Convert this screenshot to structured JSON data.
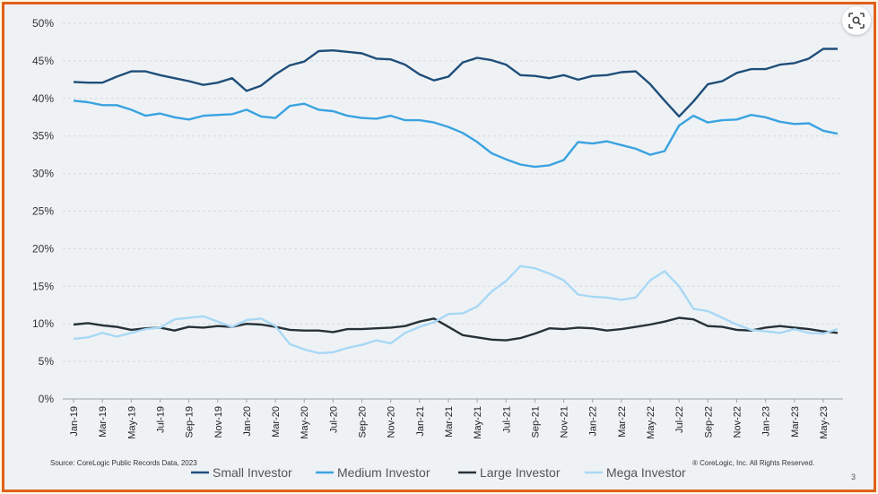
{
  "chart_data": {
    "type": "line",
    "categories": [
      "Jan-19",
      "Feb-19",
      "Mar-19",
      "Apr-19",
      "May-19",
      "Jun-19",
      "Jul-19",
      "Aug-19",
      "Sep-19",
      "Oct-19",
      "Nov-19",
      "Dec-19",
      "Jan-20",
      "Feb-20",
      "Mar-20",
      "Apr-20",
      "May-20",
      "Jun-20",
      "Jul-20",
      "Aug-20",
      "Sep-20",
      "Oct-20",
      "Nov-20",
      "Dec-20",
      "Jan-21",
      "Feb-21",
      "Mar-21",
      "Apr-21",
      "May-21",
      "Jun-21",
      "Jul-21",
      "Aug-21",
      "Sep-21",
      "Oct-21",
      "Nov-21",
      "Dec-21",
      "Jan-22",
      "Feb-22",
      "Mar-22",
      "Apr-22",
      "May-22",
      "Jun-22",
      "Jul-22",
      "Aug-22",
      "Sep-22",
      "Oct-22",
      "Nov-22",
      "Dec-22",
      "Jan-23",
      "Feb-23",
      "Mar-23",
      "Apr-23",
      "May-23",
      "Jun-23"
    ],
    "x_tick_labels": [
      "Jan-19",
      "Mar-19",
      "May-19",
      "Jul-19",
      "Sep-19",
      "Nov-19",
      "Jan-20",
      "Mar-20",
      "May-20",
      "Jul-20",
      "Sep-20",
      "Nov-20",
      "Jan-21",
      "Mar-21",
      "May-21",
      "Jul-21",
      "Sep-21",
      "Nov-21",
      "Jan-22",
      "Mar-22",
      "May-22",
      "Jul-22",
      "Sep-22",
      "Nov-22",
      "Jan-23",
      "Mar-23",
      "May-23"
    ],
    "y_tick_labels": [
      "0%",
      "5%",
      "10%",
      "15%",
      "20%",
      "25%",
      "30%",
      "35%",
      "40%",
      "45%",
      "50%"
    ],
    "ylim": [
      0,
      50
    ],
    "grid": true,
    "legend_position": "bottom",
    "series": [
      {
        "name": "Small Investor",
        "color": "#1f4e79",
        "values": [
          42.2,
          42.1,
          42.1,
          42.9,
          43.6,
          43.6,
          43.1,
          42.7,
          42.3,
          41.8,
          42.1,
          42.7,
          41.0,
          41.7,
          43.2,
          44.4,
          44.9,
          46.3,
          46.4,
          46.2,
          46.0,
          45.3,
          45.2,
          44.5,
          43.2,
          42.4,
          42.9,
          44.8,
          45.4,
          45.1,
          44.5,
          43.1,
          43.0,
          42.7,
          43.1,
          42.5,
          43.0,
          43.1,
          43.5,
          43.6,
          41.9,
          39.7,
          37.6,
          39.6,
          41.9,
          42.3,
          43.4,
          43.9,
          43.9,
          44.5,
          44.7,
          45.3,
          46.6,
          46.6
        ]
      },
      {
        "name": "Medium Investor",
        "color": "#3aa3e0",
        "values": [
          39.7,
          39.5,
          39.1,
          39.1,
          38.5,
          37.7,
          38.0,
          37.5,
          37.2,
          37.7,
          37.8,
          37.9,
          38.5,
          37.6,
          37.4,
          39.0,
          39.3,
          38.5,
          38.3,
          37.7,
          37.4,
          37.3,
          37.7,
          37.1,
          37.1,
          36.8,
          36.2,
          35.4,
          34.2,
          32.7,
          31.9,
          31.2,
          30.9,
          31.1,
          31.8,
          34.2,
          34.0,
          34.3,
          33.8,
          33.3,
          32.5,
          33.0,
          36.4,
          37.7,
          36.8,
          37.1,
          37.2,
          37.8,
          37.5,
          36.9,
          36.6,
          36.7,
          35.7,
          35.3
        ]
      },
      {
        "name": "Large Investor",
        "color": "#263238",
        "values": [
          9.9,
          10.1,
          9.8,
          9.6,
          9.2,
          9.4,
          9.5,
          9.1,
          9.6,
          9.5,
          9.7,
          9.6,
          10.0,
          9.9,
          9.6,
          9.2,
          9.1,
          9.1,
          8.9,
          9.3,
          9.3,
          9.4,
          9.5,
          9.7,
          10.3,
          10.7,
          9.6,
          8.5,
          8.2,
          7.9,
          7.8,
          8.1,
          8.7,
          9.4,
          9.3,
          9.5,
          9.4,
          9.1,
          9.3,
          9.6,
          9.9,
          10.3,
          10.8,
          10.6,
          9.7,
          9.6,
          9.2,
          9.1,
          9.5,
          9.7,
          9.5,
          9.3,
          9.0,
          8.8
        ]
      },
      {
        "name": "Mega Investor",
        "color": "#a8d8f5",
        "values": [
          8.0,
          8.2,
          8.8,
          8.3,
          8.8,
          9.3,
          9.5,
          10.6,
          10.8,
          11.0,
          10.3,
          9.6,
          10.5,
          10.7,
          9.7,
          7.3,
          6.6,
          6.1,
          6.2,
          6.8,
          7.2,
          7.8,
          7.4,
          8.8,
          9.6,
          10.2,
          11.3,
          11.4,
          12.3,
          14.3,
          15.7,
          17.7,
          17.4,
          16.7,
          15.8,
          13.9,
          13.6,
          13.5,
          13.2,
          13.5,
          15.8,
          17.0,
          15.0,
          12.0,
          11.7,
          10.8,
          9.9,
          9.2,
          9.0,
          8.8,
          9.3,
          8.8,
          8.7,
          9.3
        ]
      }
    ]
  },
  "footer": {
    "source": "Source: CoreLogic Public Records Data, 2023",
    "copyright": "® CoreLogic, Inc. All Rights Reserved.",
    "page_number": "3"
  },
  "icons": {
    "lens": "image-search-icon"
  }
}
